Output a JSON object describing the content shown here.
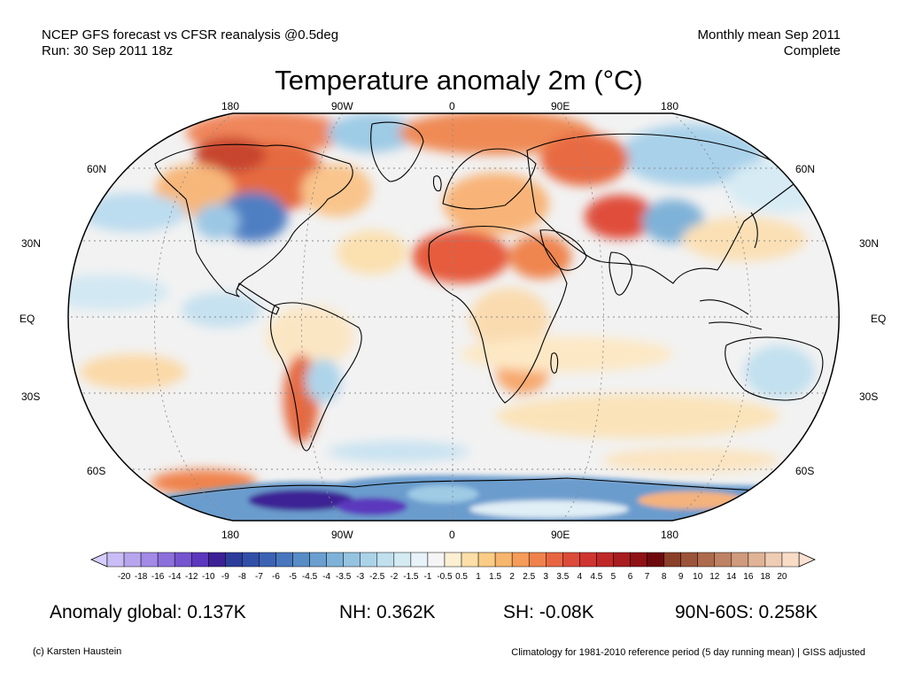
{
  "header": {
    "left_line1": "NCEP GFS forecast vs CFSR reanalysis @0.5deg",
    "left_line2": "Run: 30 Sep 2011 18z",
    "right_line1": "Monthly mean Sep 2011",
    "right_line2": "Complete"
  },
  "title": "Temperature anomaly 2m (°C)",
  "map": {
    "lon_labels_top": [
      "180",
      "90W",
      "0",
      "90E",
      "180"
    ],
    "lon_labels_bottom": [
      "180",
      "90W",
      "0",
      "90E",
      "180"
    ],
    "lat_labels_left": [
      "60N",
      "30N",
      "EQ",
      "30S",
      "60S"
    ],
    "lat_labels_right": [
      "60N",
      "30N",
      "EQ",
      "30S",
      "60S"
    ],
    "colors": {
      "ocean_base": "#f2f2f2",
      "coast": "#000000",
      "grid": "#8a8a8a"
    }
  },
  "colorbar": {
    "labels": [
      "-20",
      "-18",
      "-16",
      "-14",
      "-12",
      "-10",
      "-9",
      "-8",
      "-7",
      "-6",
      "-5",
      "-4.5",
      "-4",
      "-3.5",
      "-3",
      "-2.5",
      "-2",
      "-1.5",
      "-1",
      "-0.5",
      "0.5",
      "1",
      "1.5",
      "2",
      "2.5",
      "3",
      "3.5",
      "4",
      "4.5",
      "5",
      "6",
      "7",
      "8",
      "9",
      "10",
      "12",
      "14",
      "16",
      "18",
      "20"
    ],
    "colors": [
      "#c8bef5",
      "#b7a5ee",
      "#a28ae6",
      "#8d6fdc",
      "#7654cf",
      "#5b37bd",
      "#3d2095",
      "#2c3c9a",
      "#324fa8",
      "#3c62b4",
      "#4877be",
      "#578cc7",
      "#6a9fd0",
      "#7fb2d8",
      "#95c3e0",
      "#abd3e8",
      "#c1e0ee",
      "#d5ebf4",
      "#e7f3f8",
      "#f5f5f5",
      "#fcefd2",
      "#fcdfa8",
      "#fbcc86",
      "#f8b56d",
      "#f59c5a",
      "#ef824c",
      "#e76642",
      "#dc4b39",
      "#cf3530",
      "#c02828",
      "#a81d1f",
      "#8f1216",
      "#6e0a0d",
      "#8a3f28",
      "#9b5339",
      "#ad6a4d",
      "#bf8163",
      "#d09a7c",
      "#e0b397",
      "#efccb4",
      "#f8dcc6"
    ],
    "ends": {
      "low": "#d6ceff",
      "high": "#fbe1d2"
    }
  },
  "stats": {
    "global": "Anomaly global: 0.137K",
    "nh": "NH: 0.362K",
    "sh": "SH: -0.08K",
    "polar": "90N-60S: 0.258K"
  },
  "footer": {
    "left": "(c) Karsten Haustein",
    "right": "Climatology for 1981-2010 reference period (5 day running mean) | GISS adjusted"
  }
}
